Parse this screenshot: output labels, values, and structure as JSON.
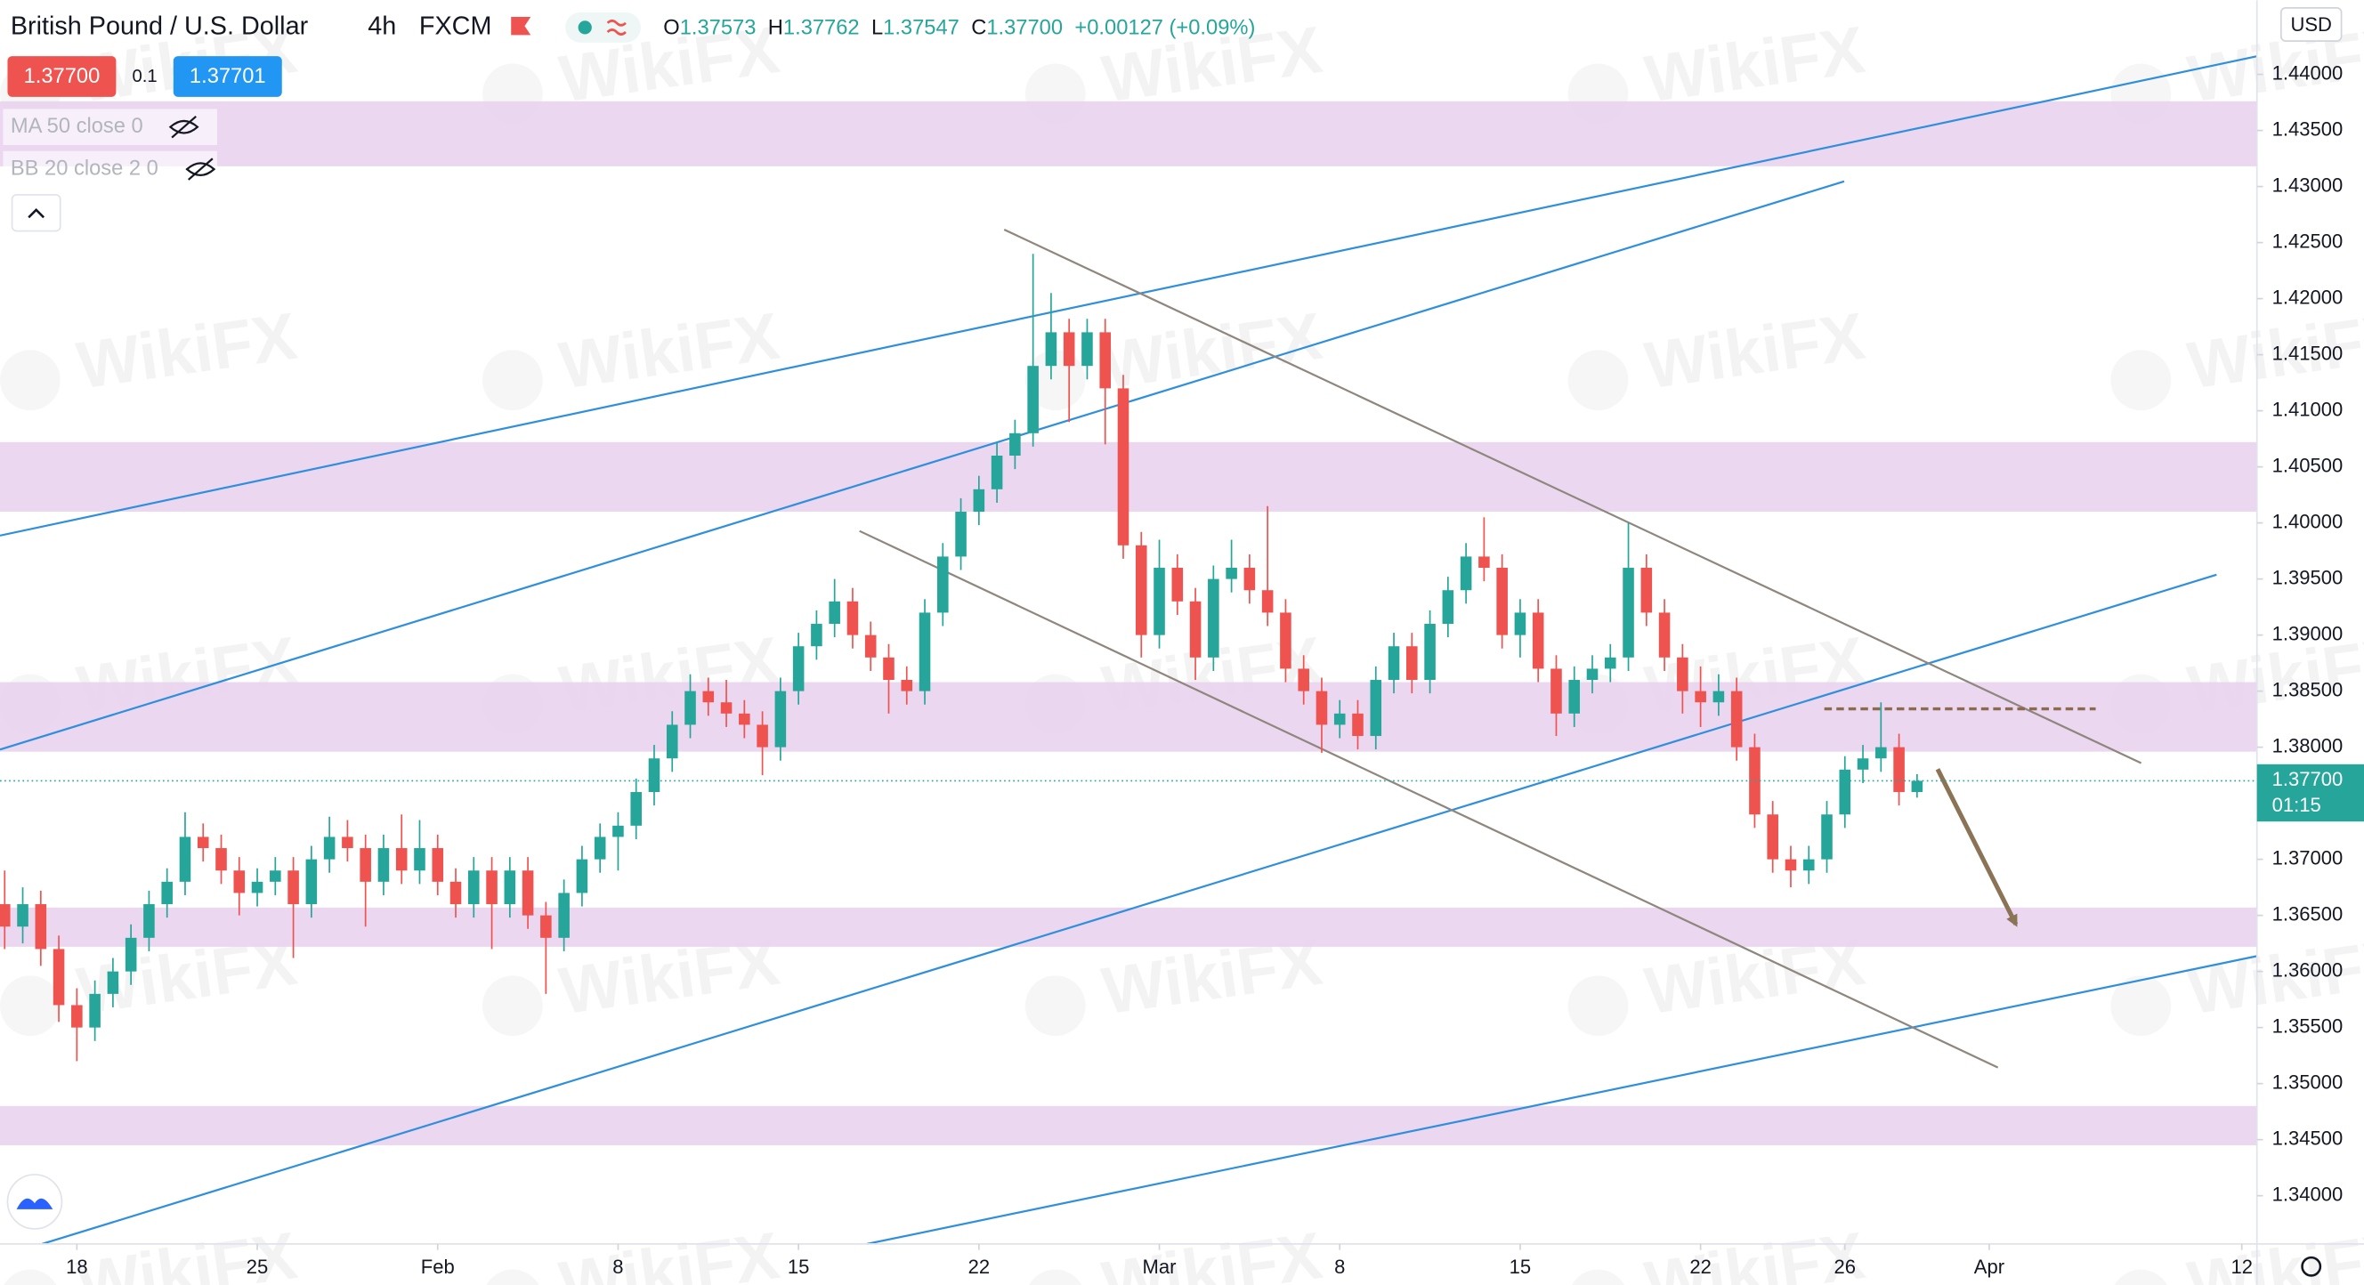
{
  "chart_data": {
    "type": "candlestick",
    "title": "British Pound / U.S. Dollar",
    "interval": "4h",
    "source": "FXCM",
    "quote_labels": {
      "open": "O",
      "high": "H",
      "low": "L",
      "close": "C"
    },
    "quote": {
      "open": "1.37573",
      "high": "1.37762",
      "low": "1.37547",
      "close": "1.37700",
      "change": "+0.00127 (+0.09%)"
    },
    "bid": "1.37700",
    "spread": "0.1",
    "ask": "1.37701",
    "indicators": [
      "MA 50 close 0",
      "BB 20 close 2 0"
    ],
    "currency": "USD",
    "last_price": {
      "value": 1.377,
      "label": "1.37700"
    },
    "countdown": "01:15",
    "watermark": "WikiFX",
    "up_color": "#26a69a",
    "down_color": "#ef5350",
    "x": [
      -2,
      -1.5,
      -1,
      -0.5,
      0,
      0.5,
      1,
      1.5,
      2,
      2.5,
      3,
      3.5,
      4,
      4.5,
      5,
      5.5,
      6,
      6.5,
      7,
      7.5,
      8,
      8.5,
      9,
      9.5,
      10,
      10.5,
      11,
      11.5,
      12,
      12.5,
      13,
      13.5,
      14,
      14.5,
      15,
      15.5,
      16,
      16.5,
      17,
      17.5,
      18,
      18.5,
      19,
      19.5,
      20,
      20.5,
      21,
      21.5,
      22,
      22.5,
      23,
      23.5,
      24,
      24.5,
      25,
      25.5,
      26,
      26.5,
      27,
      27.5,
      28,
      28.5,
      29,
      29.5,
      30,
      30.5,
      31,
      31.5,
      32,
      32.5,
      33,
      33.5,
      34,
      34.5,
      35,
      35.5,
      36,
      36.5,
      37,
      37.5,
      38,
      38.5,
      39,
      39.5,
      40,
      40.5,
      41,
      41.5,
      42,
      42.5,
      43,
      43.5,
      44,
      44.5,
      45,
      45.5,
      46,
      46.5,
      47,
      47.5,
      48,
      48.5,
      49,
      49.5,
      50,
      50.5,
      51
    ],
    "ohlc": [
      [
        1.366,
        1.369,
        1.362,
        1.364
      ],
      [
        1.364,
        1.3675,
        1.3625,
        1.366
      ],
      [
        1.366,
        1.3672,
        1.3605,
        1.362
      ],
      [
        1.362,
        1.3632,
        1.3555,
        1.357
      ],
      [
        1.357,
        1.3585,
        1.352,
        1.355
      ],
      [
        1.355,
        1.3592,
        1.3538,
        1.358
      ],
      [
        1.358,
        1.3612,
        1.3568,
        1.36
      ],
      [
        1.36,
        1.3642,
        1.3588,
        1.363
      ],
      [
        1.363,
        1.3672,
        1.3618,
        1.366
      ],
      [
        1.366,
        1.3692,
        1.3648,
        1.368
      ],
      [
        1.368,
        1.3742,
        1.3668,
        1.372
      ],
      [
        1.372,
        1.3732,
        1.3698,
        1.371
      ],
      [
        1.371,
        1.3722,
        1.3678,
        1.369
      ],
      [
        1.369,
        1.3702,
        1.365,
        1.367
      ],
      [
        1.367,
        1.3692,
        1.3658,
        1.368
      ],
      [
        1.368,
        1.3702,
        1.3668,
        1.369
      ],
      [
        1.369,
        1.3702,
        1.3612,
        1.366
      ],
      [
        1.366,
        1.3712,
        1.3648,
        1.37
      ],
      [
        1.37,
        1.3738,
        1.3688,
        1.372
      ],
      [
        1.372,
        1.3735,
        1.3698,
        1.371
      ],
      [
        1.371,
        1.3722,
        1.364,
        1.368
      ],
      [
        1.368,
        1.3722,
        1.3668,
        1.371
      ],
      [
        1.371,
        1.374,
        1.3678,
        1.369
      ],
      [
        1.369,
        1.3735,
        1.3678,
        1.371
      ],
      [
        1.371,
        1.3722,
        1.3668,
        1.368
      ],
      [
        1.368,
        1.3692,
        1.3648,
        1.366
      ],
      [
        1.366,
        1.3702,
        1.3648,
        1.369
      ],
      [
        1.369,
        1.3702,
        1.362,
        1.366
      ],
      [
        1.366,
        1.3702,
        1.3648,
        1.369
      ],
      [
        1.369,
        1.3702,
        1.3638,
        1.365
      ],
      [
        1.365,
        1.3662,
        1.358,
        1.363
      ],
      [
        1.363,
        1.3682,
        1.3618,
        1.367
      ],
      [
        1.367,
        1.3712,
        1.3658,
        1.37
      ],
      [
        1.37,
        1.3732,
        1.3688,
        1.372
      ],
      [
        1.372,
        1.3742,
        1.369,
        1.373
      ],
      [
        1.373,
        1.3772,
        1.3718,
        1.376
      ],
      [
        1.376,
        1.3802,
        1.3748,
        1.379
      ],
      [
        1.379,
        1.3832,
        1.3778,
        1.382
      ],
      [
        1.382,
        1.3865,
        1.3808,
        1.385
      ],
      [
        1.385,
        1.3862,
        1.3828,
        1.384
      ],
      [
        1.384,
        1.386,
        1.3818,
        1.383
      ],
      [
        1.383,
        1.3842,
        1.3808,
        1.382
      ],
      [
        1.382,
        1.3832,
        1.3775,
        1.38
      ],
      [
        1.38,
        1.3862,
        1.3788,
        1.385
      ],
      [
        1.385,
        1.3902,
        1.3838,
        1.389
      ],
      [
        1.389,
        1.3922,
        1.3878,
        1.391
      ],
      [
        1.391,
        1.395,
        1.3898,
        1.393
      ],
      [
        1.393,
        1.3942,
        1.3888,
        1.39
      ],
      [
        1.39,
        1.3912,
        1.3868,
        1.388
      ],
      [
        1.388,
        1.3892,
        1.383,
        1.386
      ],
      [
        1.386,
        1.3872,
        1.3838,
        1.385
      ],
      [
        1.385,
        1.3932,
        1.3838,
        1.392
      ],
      [
        1.392,
        1.3982,
        1.3908,
        1.397
      ],
      [
        1.397,
        1.4022,
        1.3958,
        1.401
      ],
      [
        1.401,
        1.4042,
        1.3998,
        1.403
      ],
      [
        1.403,
        1.4072,
        1.4018,
        1.406
      ],
      [
        1.406,
        1.4092,
        1.4048,
        1.408
      ],
      [
        1.408,
        1.424,
        1.4068,
        1.414
      ],
      [
        1.414,
        1.4205,
        1.4128,
        1.417
      ],
      [
        1.417,
        1.4182,
        1.409,
        1.414
      ],
      [
        1.414,
        1.4182,
        1.4128,
        1.417
      ],
      [
        1.417,
        1.4182,
        1.407,
        1.412
      ],
      [
        1.412,
        1.4132,
        1.3968,
        1.398
      ],
      [
        1.398,
        1.3992,
        1.388,
        1.39
      ],
      [
        1.39,
        1.3985,
        1.3888,
        1.396
      ],
      [
        1.396,
        1.3972,
        1.3918,
        1.393
      ],
      [
        1.393,
        1.3942,
        1.386,
        1.388
      ],
      [
        1.388,
        1.3962,
        1.3868,
        1.395
      ],
      [
        1.395,
        1.3985,
        1.3938,
        1.396
      ],
      [
        1.396,
        1.3972,
        1.3928,
        1.394
      ],
      [
        1.394,
        1.4015,
        1.3908,
        1.392
      ],
      [
        1.392,
        1.3932,
        1.3858,
        1.387
      ],
      [
        1.387,
        1.3882,
        1.3838,
        1.385
      ],
      [
        1.385,
        1.3862,
        1.3795,
        1.382
      ],
      [
        1.382,
        1.3842,
        1.3808,
        1.383
      ],
      [
        1.383,
        1.3842,
        1.3798,
        1.381
      ],
      [
        1.381,
        1.3872,
        1.3798,
        1.386
      ],
      [
        1.386,
        1.3902,
        1.3848,
        1.389
      ],
      [
        1.389,
        1.3902,
        1.3848,
        1.386
      ],
      [
        1.386,
        1.3922,
        1.3848,
        1.391
      ],
      [
        1.391,
        1.3952,
        1.3898,
        1.394
      ],
      [
        1.394,
        1.3982,
        1.3928,
        1.397
      ],
      [
        1.397,
        1.4005,
        1.3948,
        1.396
      ],
      [
        1.396,
        1.3972,
        1.3888,
        1.39
      ],
      [
        1.39,
        1.3932,
        1.388,
        1.392
      ],
      [
        1.392,
        1.3932,
        1.3858,
        1.387
      ],
      [
        1.387,
        1.3882,
        1.381,
        1.383
      ],
      [
        1.383,
        1.3872,
        1.3818,
        1.386
      ],
      [
        1.386,
        1.3882,
        1.3848,
        1.387
      ],
      [
        1.387,
        1.3892,
        1.3858,
        1.388
      ],
      [
        1.388,
        1.4,
        1.3868,
        1.396
      ],
      [
        1.396,
        1.3972,
        1.3908,
        1.392
      ],
      [
        1.392,
        1.3932,
        1.3868,
        1.388
      ],
      [
        1.388,
        1.3892,
        1.383,
        1.385
      ],
      [
        1.385,
        1.3872,
        1.3818,
        1.384
      ],
      [
        1.384,
        1.3865,
        1.3828,
        1.385
      ],
      [
        1.385,
        1.3862,
        1.3788,
        1.38
      ],
      [
        1.38,
        1.3812,
        1.3728,
        1.374
      ],
      [
        1.374,
        1.3752,
        1.3688,
        1.37
      ],
      [
        1.37,
        1.3712,
        1.3675,
        1.369
      ],
      [
        1.369,
        1.3712,
        1.3678,
        1.37
      ],
      [
        1.37,
        1.3752,
        1.3688,
        1.374
      ],
      [
        1.374,
        1.3792,
        1.3728,
        1.378
      ],
      [
        1.378,
        1.3802,
        1.3768,
        1.379
      ],
      [
        1.379,
        1.384,
        1.3778,
        1.38
      ],
      [
        1.38,
        1.3812,
        1.3748,
        1.376
      ],
      [
        1.376,
        1.3776,
        1.3755,
        1.377
      ]
    ],
    "xlim": [
      -2.13,
      60.42
    ],
    "xticks": [
      {
        "value": 0,
        "label": "18"
      },
      {
        "value": 5,
        "label": "25"
      },
      {
        "value": 10,
        "label": "Feb"
      },
      {
        "value": 15,
        "label": "8"
      },
      {
        "value": 20,
        "label": "15"
      },
      {
        "value": 25,
        "label": "22"
      },
      {
        "value": 30,
        "label": "Mar"
      },
      {
        "value": 35,
        "label": "8"
      },
      {
        "value": 40,
        "label": "15"
      },
      {
        "value": 45,
        "label": "22"
      },
      {
        "value": 49,
        "label": "26"
      },
      {
        "value": 53,
        "label": "Apr"
      },
      {
        "value": 60,
        "label": "12"
      }
    ],
    "ylim": [
      1.3357,
      1.4466
    ],
    "yticks": [
      {
        "value": 1.34,
        "label": "1.34000"
      },
      {
        "value": 1.345,
        "label": "1.34500"
      },
      {
        "value": 1.35,
        "label": "1.35000"
      },
      {
        "value": 1.355,
        "label": "1.35500"
      },
      {
        "value": 1.36,
        "label": "1.36000"
      },
      {
        "value": 1.365,
        "label": "1.36500"
      },
      {
        "value": 1.37,
        "label": "1.37000"
      },
      {
        "value": 1.375,
        "label": "1.37500"
      },
      {
        "value": 1.38,
        "label": "1.38000"
      },
      {
        "value": 1.385,
        "label": "1.38500"
      },
      {
        "value": 1.39,
        "label": "1.39000"
      },
      {
        "value": 1.395,
        "label": "1.39500"
      },
      {
        "value": 1.4,
        "label": "1.40000"
      },
      {
        "value": 1.405,
        "label": "1.40500"
      },
      {
        "value": 1.41,
        "label": "1.41000"
      },
      {
        "value": 1.415,
        "label": "1.41500"
      },
      {
        "value": 1.42,
        "label": "1.42000"
      },
      {
        "value": 1.425,
        "label": "1.42500"
      },
      {
        "value": 1.43,
        "label": "1.43000"
      },
      {
        "value": 1.435,
        "label": "1.43500"
      },
      {
        "value": 1.44,
        "label": "1.44000"
      }
    ],
    "zones": {
      "color": "#e9d3ee",
      "ranges": [
        [
          1.4318,
          1.4376
        ],
        [
          1.401,
          1.4072
        ],
        [
          1.3796,
          1.3858
        ],
        [
          1.3622,
          1.3657
        ],
        [
          1.3445,
          1.348
        ]
      ]
    },
    "trendlines": [
      {
        "color": "#2f8fdd",
        "points": [
          [
            -2.13,
            1.39887
          ],
          [
            60.42,
            1.44162
          ]
        ]
      },
      {
        "color": "#2f8fdd",
        "points": [
          [
            -2.13,
            1.37979
          ],
          [
            48.98,
            1.43046
          ]
        ]
      },
      {
        "color": "#2f8fdd",
        "points": [
          [
            -0.96,
            1.3357
          ],
          [
            59.3,
            1.39538
          ]
        ]
      },
      {
        "color": "#2f8fdd",
        "points": [
          [
            21.9,
            1.3357
          ],
          [
            60.42,
            1.36137
          ]
        ]
      },
      {
        "color": "#8f877d",
        "points": [
          [
            25.7,
            1.42616
          ],
          [
            57.21,
            1.37858
          ]
        ]
      },
      {
        "color": "#8f877d",
        "points": [
          [
            21.69,
            1.39928
          ],
          [
            53.24,
            1.35143
          ]
        ]
      }
    ],
    "resistance_line": {
      "color": "#8b6a4e",
      "points": [
        [
          48.43,
          1.38342
        ],
        [
          55.95,
          1.38342
        ]
      ]
    },
    "arrow": {
      "color": "#8b7355",
      "points": [
        [
          51.57,
          1.37804
        ],
        [
          53.74,
          1.3642
        ]
      ]
    }
  }
}
